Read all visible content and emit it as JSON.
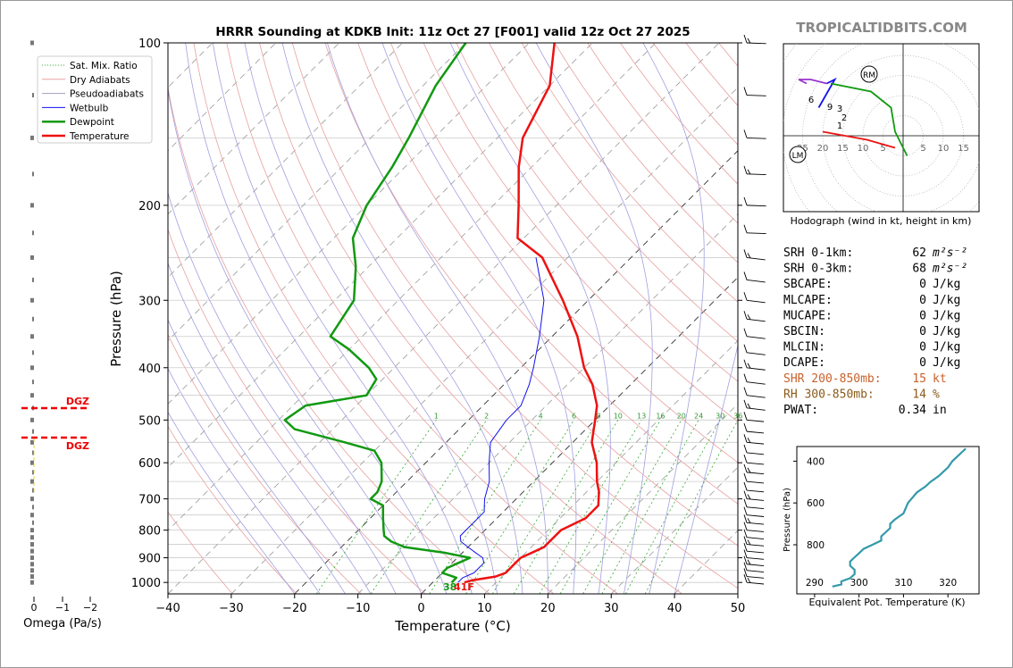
{
  "title": "HRRR Sounding at KDKB Init: 11z Oct 27 [F001] valid 12z Oct 27 2025",
  "brand": "TROPICALTIDBITS.COM",
  "skewt": {
    "ylabel": "Pressure (hPa)",
    "xlabel": "Temperature (°C)",
    "pressure_ticks": [
      "100",
      "200",
      "300",
      "400",
      "500",
      "600",
      "700",
      "800",
      "900",
      "1000"
    ],
    "temp_ticks": [
      "−40",
      "−30",
      "−20",
      "−10",
      "0",
      "10",
      "20",
      "30",
      "40",
      "50"
    ],
    "mixing_ratio_labels": [
      "1",
      "2",
      "4",
      "6",
      "8",
      "10",
      "13",
      "16",
      "20",
      "24",
      "30",
      "36"
    ],
    "surface_dewpoint_label": "38",
    "surface_temp_label": "41F",
    "legend": [
      "Sat. Mix. Ratio",
      "Dry Adiabats",
      "Pseudoadiabats",
      "Wetbulb",
      "Dewpoint",
      "Temperature"
    ]
  },
  "omega": {
    "xlabel": "Omega (Pa/s)",
    "ticks": [
      "0",
      "−1",
      "−2"
    ],
    "dgz_label": "DGZ"
  },
  "hodograph": {
    "caption": "Hodograph (wind in kt, height in km)",
    "ring_labels": [
      "25",
      "20",
      "15",
      "10",
      "5",
      "5",
      "10",
      "15"
    ],
    "height_labels": [
      "1",
      "2",
      "3",
      "6",
      "9"
    ],
    "rm_label": "RM",
    "lm_label": "LM"
  },
  "indices": [
    {
      "label": "SRH 0-1km:",
      "value": "62",
      "unit": "m²s⁻²",
      "color": "#000000"
    },
    {
      "label": "SRH 0-3km:",
      "value": "68",
      "unit": "m²s⁻²",
      "color": "#000000"
    },
    {
      "label": "SBCAPE:",
      "value": "0",
      "unit": "J/kg",
      "color": "#000000"
    },
    {
      "label": "MLCAPE:",
      "value": "0",
      "unit": "J/kg",
      "color": "#000000"
    },
    {
      "label": "MUCAPE:",
      "value": "0",
      "unit": "J/kg",
      "color": "#000000"
    },
    {
      "label": "SBCIN:",
      "value": "0",
      "unit": "J/kg",
      "color": "#000000"
    },
    {
      "label": "MLCIN:",
      "value": "0",
      "unit": "J/kg",
      "color": "#000000"
    },
    {
      "label": "DCAPE:",
      "value": "0",
      "unit": "J/kg",
      "color": "#000000"
    },
    {
      "label": "SHR 200-850mb:",
      "value": "15",
      "unit": "kt",
      "color": "#c8612b"
    },
    {
      "label": "RH 300-850mb:",
      "value": "14",
      "unit": "%",
      "color": "#8b5a1a"
    },
    {
      "label": "PWAT:",
      "value": "0.34",
      "unit": "in",
      "color": "#000000"
    }
  ],
  "theta_e": {
    "xlabel": "Equivalent Pot. Temperature (K)",
    "ylabel": "Pressure (hPa)",
    "xticks": [
      "290",
      "300",
      "310",
      "320"
    ],
    "yticks": [
      "400",
      "600",
      "800"
    ]
  },
  "colors": {
    "temperature": "#ee1111",
    "dewpoint": "#119911",
    "wetbulb": "#1111ee",
    "dry_adiabat": "#e8a0a0",
    "moist_adiabat": "#a0a0e0",
    "mixing_ratio": "#33aa33",
    "theta_e": "#3399aa",
    "hodo_0_1": "#ee1111",
    "hodo_1_3": "#1111ee",
    "hodo_3_6": "#119911",
    "hodo_6_9": "#9933cc"
  },
  "chart_data": {
    "type": "line",
    "xlim": [
      -40,
      50
    ],
    "ylim": [
      1000,
      100
    ],
    "log_y": true,
    "skew": "45deg",
    "series": [
      {
        "name": "Temperature",
        "points": [
          [
            1000,
            5
          ],
          [
            990,
            6
          ],
          [
            975,
            9
          ],
          [
            960,
            10
          ],
          [
            940,
            10
          ],
          [
            920,
            10
          ],
          [
            900,
            10
          ],
          [
            880,
            11
          ],
          [
            860,
            12
          ],
          [
            840,
            12
          ],
          [
            820,
            12
          ],
          [
            800,
            12
          ],
          [
            780,
            13
          ],
          [
            760,
            14
          ],
          [
            740,
            14
          ],
          [
            720,
            14
          ],
          [
            700,
            13
          ],
          [
            680,
            12
          ],
          [
            650,
            10
          ],
          [
            600,
            7
          ],
          [
            550,
            3
          ],
          [
            500,
            0
          ],
          [
            470,
            -2
          ],
          [
            430,
            -6
          ],
          [
            400,
            -10
          ],
          [
            350,
            -16
          ],
          [
            300,
            -24
          ],
          [
            250,
            -34
          ],
          [
            230,
            -41
          ],
          [
            200,
            -46
          ],
          [
            170,
            -52
          ],
          [
            150,
            -56
          ],
          [
            120,
            -60
          ],
          [
            100,
            -66
          ]
        ]
      },
      {
        "name": "Dewpoint",
        "points": [
          [
            1000,
            3
          ],
          [
            980,
            3
          ],
          [
            960,
            0
          ],
          [
            940,
            0
          ],
          [
            920,
            1
          ],
          [
            900,
            2
          ],
          [
            880,
            -3
          ],
          [
            860,
            -10
          ],
          [
            840,
            -13
          ],
          [
            820,
            -15
          ],
          [
            800,
            -16
          ],
          [
            760,
            -18
          ],
          [
            720,
            -20
          ],
          [
            700,
            -23
          ],
          [
            680,
            -23
          ],
          [
            650,
            -24
          ],
          [
            600,
            -27
          ],
          [
            570,
            -30
          ],
          [
            550,
            -36
          ],
          [
            520,
            -46
          ],
          [
            500,
            -49
          ],
          [
            470,
            -48
          ],
          [
            450,
            -40
          ],
          [
            420,
            -41
          ],
          [
            400,
            -44
          ],
          [
            370,
            -50
          ],
          [
            350,
            -55
          ],
          [
            300,
            -57
          ],
          [
            260,
            -62
          ],
          [
            230,
            -67
          ],
          [
            200,
            -70
          ],
          [
            170,
            -72
          ],
          [
            150,
            -74
          ],
          [
            120,
            -78
          ],
          [
            100,
            -80
          ]
        ]
      },
      {
        "name": "Wetbulb",
        "points": [
          [
            1000,
            4
          ],
          [
            980,
            4
          ],
          [
            960,
            5
          ],
          [
            940,
            5
          ],
          [
            920,
            5
          ],
          [
            900,
            4
          ],
          [
            880,
            2
          ],
          [
            860,
            0
          ],
          [
            840,
            -2
          ],
          [
            820,
            -3
          ],
          [
            800,
            -3
          ],
          [
            780,
            -3
          ],
          [
            760,
            -3
          ],
          [
            740,
            -3
          ],
          [
            720,
            -4
          ],
          [
            700,
            -5
          ],
          [
            650,
            -7
          ],
          [
            600,
            -10
          ],
          [
            550,
            -13
          ],
          [
            500,
            -14
          ],
          [
            470,
            -14
          ],
          [
            430,
            -16
          ],
          [
            400,
            -18
          ],
          [
            350,
            -22
          ],
          [
            300,
            -27
          ],
          [
            250,
            -35
          ]
        ]
      }
    ],
    "theta_e_profile": [
      [
        1000,
        294
      ],
      [
        990,
        296
      ],
      [
        975,
        296
      ],
      [
        960,
        298
      ],
      [
        940,
        299
      ],
      [
        920,
        299
      ],
      [
        900,
        298
      ],
      [
        880,
        298
      ],
      [
        860,
        299
      ],
      [
        840,
        300
      ],
      [
        820,
        301
      ],
      [
        800,
        303
      ],
      [
        780,
        305
      ],
      [
        760,
        305
      ],
      [
        740,
        306
      ],
      [
        720,
        307
      ],
      [
        700,
        307
      ],
      [
        680,
        308
      ],
      [
        650,
        310
      ],
      [
        600,
        311
      ],
      [
        550,
        313
      ],
      [
        520,
        315
      ],
      [
        500,
        316
      ],
      [
        470,
        318
      ],
      [
        450,
        319
      ],
      [
        430,
        320
      ],
      [
        400,
        321
      ],
      [
        380,
        322
      ],
      [
        360,
        323
      ],
      [
        340,
        324
      ]
    ],
    "hodograph_segments": [
      {
        "name": "0-1 km",
        "points": [
          [
            -2,
            -3
          ],
          [
            -9,
            -1
          ],
          [
            -20,
            1
          ]
        ]
      },
      {
        "name": "1-3 km",
        "points": [
          [
            -21,
            7
          ],
          [
            -17,
            14
          ],
          [
            -19,
            13
          ]
        ]
      },
      {
        "name": "3-6 km",
        "points": [
          [
            -18,
            13
          ],
          [
            -8,
            11
          ],
          [
            -3,
            7
          ],
          [
            -2,
            1
          ],
          [
            1,
            -5
          ]
        ]
      },
      {
        "name": "6-9 km",
        "points": [
          [
            -19,
            13
          ],
          [
            -23,
            14
          ],
          [
            -26,
            14
          ],
          [
            -24,
            13
          ]
        ]
      }
    ],
    "omega_dgz_hpa": [
      476,
      541
    ]
  }
}
